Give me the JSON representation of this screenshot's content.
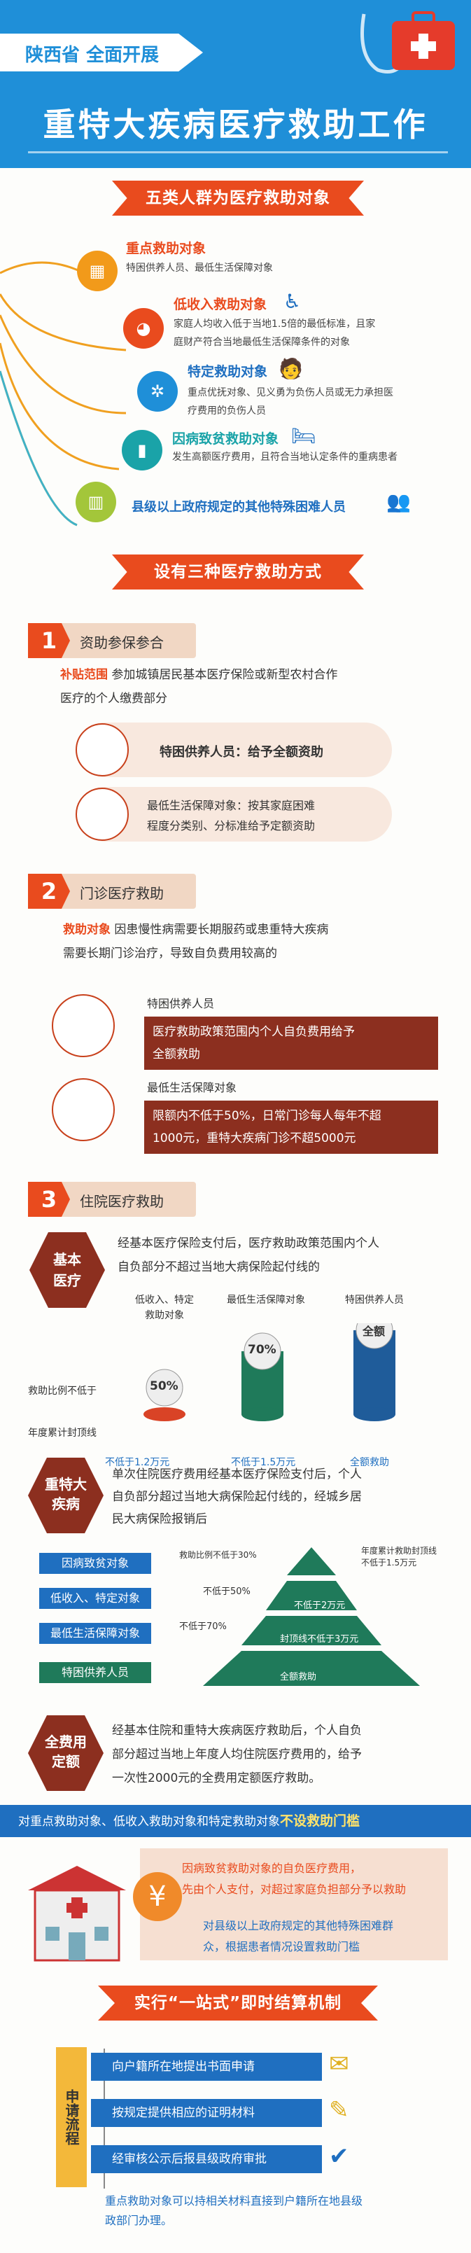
{
  "header": {
    "tag": "陕西省 全面开展",
    "title": "重特大疾病医疗救助工作"
  },
  "sec1": {
    "title": "五类人群为医疗救助对象",
    "items": [
      {
        "title": "重点救助对象",
        "desc1": "特困供养人员、最低生活保障对象",
        "desc2": ""
      },
      {
        "title": "低收入救助对象",
        "desc1": "家庭人均收入低于当地1.5倍的最低标准，且家",
        "desc2": "庭财产符合当地最低生活保障条件的对象"
      },
      {
        "title": "特定救助对象",
        "desc1": "重点优抚对象、见义勇为负伤人员或无力承担医",
        "desc2": "疗费用的负伤人员"
      },
      {
        "title": "因病致贫救助对象",
        "desc1": "发生高额医疗费用，且符合当地认定条件的重病患者",
        "desc2": ""
      },
      {
        "title": "县级以上政府规定的其他特殊困难人员",
        "desc1": "",
        "desc2": ""
      }
    ]
  },
  "sec2": {
    "title": "设有三种医疗救助方式"
  },
  "m1": {
    "num": "1",
    "label": "资助参保参合",
    "lead": "补贴范围",
    "text1": "参加城镇居民基本医疗保险或新型农村合作",
    "text2": "医疗的个人缴费部分",
    "pill1": "特困供养人员：给予全额资助",
    "pill2a": "最低生活保障对象：按其家庭困难",
    "pill2b": "程度分类别、分标准给予定额资助"
  },
  "m2": {
    "num": "2",
    "label": "门诊医疗救助",
    "lead": "救助对象",
    "text1": "因患慢性病需要长期服药或患重特大疾病",
    "text2": "需要长期门诊治疗，导致自负费用较高的",
    "g1": "特困供养人员",
    "b1a": "医疗救助政策范围内个人自负费用给予",
    "b1b": "全额救助",
    "g2": "最低生活保障对象",
    "b2a": "限额内不低于50%，日常门诊每人每年不超",
    "b2b": "1000元，重特大疾病门诊不超5000元"
  },
  "m3": {
    "num": "3",
    "label": "住院医疗救助",
    "hex1": "基本\n医疗",
    "t1a": "经基本医疗保险支付后，医疗救助政策范围内个人",
    "t1b": "自负部分不超过当地大病保险起付线的",
    "col1": "低收入、特定\n救助对象",
    "col2": "最低生活保障对象",
    "col3": "特困供养人员",
    "pct1": "50%",
    "pct2": "70%",
    "pct3": "全额",
    "rowlabel1": "救助比例不低于",
    "rowlabel2": "年度累计封顶线",
    "cap1": "不低于1.2万元",
    "cap2": "不低于1.5万元",
    "cap3": "全额救助",
    "hex2": "重特大\n疾病",
    "t2a": "单次住院医疗费用经基本医疗保险支付后，个人",
    "t2b": "自负部分超过当地大病保险起付线的，经城乡居",
    "t2c": "民大病保险报销后",
    "pyr": [
      {
        "label": "因病致贫对象",
        "ratio": "救助比例不低于30%",
        "cap": "年度累计救助封顶线\n不低于1.5万元"
      },
      {
        "label": "低收入、特定对象",
        "ratio": "不低于50%",
        "cap": "不低于2万元"
      },
      {
        "label": "最低生活保障对象",
        "ratio": "不低于70%",
        "cap": "封顶线不低于3万元"
      },
      {
        "label": "特困供养人员",
        "ratio": "",
        "cap": "全额救助"
      }
    ],
    "hex3": "全费用\n定额",
    "t3a": "经基本住院和重特大疾病医疗救助后，个人自负",
    "t3b": "部分超过当地上年度人均住院医疗费用的，给予",
    "t3c": "一次性2000元的全费用定额医疗救助。"
  },
  "nothreshold": {
    "text": "对重点救助对象、低收入救助对象和特定救助对象",
    "hl": "不设救助门槛",
    "p1a": "因病致贫救助对象的自负医疗费用，",
    "p1b": "先由个人支付，对超过家庭负担部分予以救助",
    "p2a": "对县级以上政府规定的其他特殊困难群",
    "p2b": "众，根据患者情况设置救助门槛",
    "yen": "¥"
  },
  "sec3": {
    "title": "实行“一站式”即时结算机制"
  },
  "process": {
    "label": "申请流程",
    "steps": [
      "向户籍所在地提出书面申请",
      "按规定提供相应的证明材料",
      "经审核公示后报县级政府审批"
    ],
    "foot1": "重点救助对象可以持相关材料直接到户籍所在地县级",
    "foot2": "政部门办理。"
  }
}
